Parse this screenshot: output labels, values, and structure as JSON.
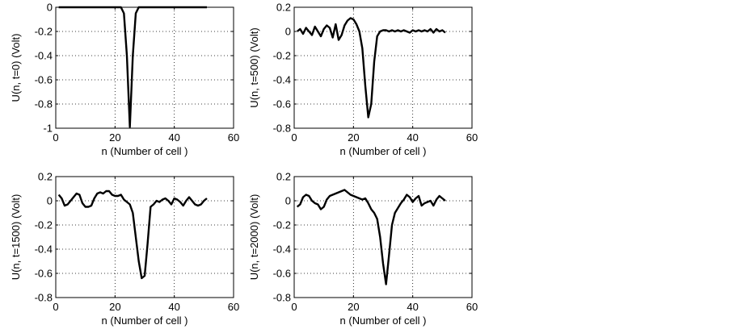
{
  "chart_data": [
    {
      "type": "line",
      "xlabel": "n (Number of cell )",
      "ylabel": "U(n, t=0) (Volt)",
      "xlim": [
        0,
        60
      ],
      "ylim": [
        -1,
        0
      ],
      "xticks": [
        0,
        20,
        40,
        60
      ],
      "yticks": [
        -1,
        -0.8,
        -0.6,
        -0.4,
        -0.2,
        0
      ],
      "ytick_labels": [
        "-1",
        "-0.8",
        "-0.6",
        "-0.4",
        "-0.2",
        "0"
      ],
      "grid": true,
      "series": [
        {
          "x": [
            1,
            2,
            3,
            4,
            5,
            6,
            7,
            8,
            9,
            10,
            11,
            12,
            13,
            14,
            15,
            16,
            17,
            18,
            19,
            20,
            21,
            22,
            23,
            24,
            25,
            26,
            27,
            28,
            29,
            30,
            31,
            32,
            33,
            34,
            35,
            36,
            37,
            38,
            39,
            40,
            41,
            42,
            43,
            44,
            45,
            46,
            47,
            48,
            49,
            50,
            51
          ],
          "y": [
            0,
            0,
            0,
            0,
            0,
            0,
            0,
            0,
            0,
            0,
            0,
            0,
            0,
            0,
            0,
            0,
            0,
            0,
            0,
            0,
            0,
            0,
            -0.05,
            -0.4,
            -0.99,
            -0.4,
            -0.05,
            0,
            0,
            0,
            0,
            0,
            0,
            0,
            0,
            0,
            0,
            0,
            0,
            0,
            0,
            0,
            0,
            0,
            0,
            0,
            0,
            0,
            0,
            0,
            0
          ]
        }
      ]
    },
    {
      "type": "line",
      "xlabel": "n (Number of cell )",
      "ylabel": "U(n, t=500) (Volt)",
      "xlim": [
        0,
        60
      ],
      "ylim": [
        -0.8,
        0.2
      ],
      "xticks": [
        0,
        20,
        40,
        60
      ],
      "yticks": [
        -0.8,
        -0.6,
        -0.4,
        -0.2,
        0,
        0.2
      ],
      "ytick_labels": [
        "-0.8",
        "-0.6",
        "-0.4",
        "-0.2",
        "0",
        "0.2"
      ],
      "grid": true,
      "series": [
        {
          "x": [
            1,
            2,
            3,
            4,
            5,
            6,
            7,
            8,
            9,
            10,
            11,
            12,
            13,
            14,
            15,
            16,
            17,
            18,
            19,
            20,
            21,
            22,
            23,
            24,
            25,
            26,
            27,
            28,
            29,
            30,
            31,
            32,
            33,
            34,
            35,
            36,
            37,
            38,
            39,
            40,
            41,
            42,
            43,
            44,
            45,
            46,
            47,
            48,
            49,
            50,
            51
          ],
          "y": [
            0,
            0.02,
            -0.02,
            0.03,
            0,
            -0.03,
            0.04,
            0,
            -0.04,
            0.02,
            0.05,
            0.03,
            -0.05,
            0.06,
            -0.07,
            -0.03,
            0.05,
            0.09,
            0.11,
            0.1,
            0.06,
            0,
            -0.14,
            -0.45,
            -0.71,
            -0.6,
            -0.25,
            -0.04,
            0,
            0.01,
            0.01,
            0,
            0.01,
            0,
            0.01,
            0,
            0.01,
            0,
            -0.01,
            0.01,
            0,
            0.01,
            0,
            0.01,
            0,
            0.02,
            -0.01,
            0.02,
            0,
            0.01,
            -0.01
          ]
        }
      ]
    },
    {
      "type": "line",
      "xlabel": "n (Number of cell )",
      "ylabel": "U(n, t=1500) (Volt)",
      "xlim": [
        0,
        60
      ],
      "ylim": [
        -0.8,
        0.2
      ],
      "xticks": [
        0,
        20,
        40,
        60
      ],
      "yticks": [
        -0.8,
        -0.6,
        -0.4,
        -0.2,
        0,
        0.2
      ],
      "ytick_labels": [
        "-0.8",
        "-0.6",
        "-0.4",
        "-0.2",
        "0",
        "0.2"
      ],
      "grid": true,
      "series": [
        {
          "x": [
            1,
            2,
            3,
            4,
            5,
            6,
            7,
            8,
            9,
            10,
            11,
            12,
            13,
            14,
            15,
            16,
            17,
            18,
            19,
            20,
            21,
            22,
            23,
            24,
            25,
            26,
            27,
            28,
            29,
            30,
            31,
            32,
            33,
            34,
            35,
            36,
            37,
            38,
            39,
            40,
            41,
            42,
            43,
            44,
            45,
            46,
            47,
            48,
            49,
            50,
            51
          ],
          "y": [
            0.05,
            0.02,
            -0.04,
            -0.03,
            0,
            0.03,
            0.06,
            0.05,
            -0.02,
            -0.05,
            -0.05,
            -0.04,
            0.02,
            0.06,
            0.07,
            0.06,
            0.08,
            0.08,
            0.05,
            0.04,
            0.04,
            0.05,
            0.01,
            -0.01,
            -0.03,
            -0.1,
            -0.3,
            -0.5,
            -0.64,
            -0.62,
            -0.35,
            -0.05,
            -0.03,
            0,
            -0.01,
            0.01,
            0.02,
            0,
            -0.03,
            0.02,
            0.01,
            -0.01,
            -0.04,
            0,
            0.03,
            0,
            -0.03,
            -0.04,
            -0.03,
            0,
            0.02
          ]
        }
      ]
    },
    {
      "type": "line",
      "xlabel": "n (Number of cell )",
      "ylabel": "U(n, t=2000) (Volt)",
      "xlim": [
        0,
        60
      ],
      "ylim": [
        -0.8,
        0.2
      ],
      "xticks": [
        0,
        20,
        40,
        60
      ],
      "yticks": [
        -0.8,
        -0.6,
        -0.4,
        -0.2,
        0,
        0.2
      ],
      "ytick_labels": [
        "-0.8",
        "-0.6",
        "-0.4",
        "-0.2",
        "0",
        "0.2"
      ],
      "grid": true,
      "series": [
        {
          "x": [
            1,
            2,
            3,
            4,
            5,
            6,
            7,
            8,
            9,
            10,
            11,
            12,
            13,
            14,
            15,
            16,
            17,
            18,
            19,
            20,
            21,
            22,
            23,
            24,
            25,
            26,
            27,
            28,
            29,
            30,
            31,
            32,
            33,
            34,
            35,
            36,
            37,
            38,
            39,
            40,
            41,
            42,
            43,
            44,
            45,
            46,
            47,
            48,
            49,
            50,
            51
          ],
          "y": [
            -0.05,
            -0.03,
            0.03,
            0.05,
            0.04,
            0,
            -0.02,
            -0.03,
            -0.07,
            -0.05,
            0.01,
            0.04,
            0.05,
            0.06,
            0.07,
            0.08,
            0.09,
            0.07,
            0.05,
            0.04,
            0.03,
            0.02,
            0.01,
            0.02,
            -0.02,
            -0.07,
            -0.1,
            -0.15,
            -0.3,
            -0.52,
            -0.69,
            -0.45,
            -0.2,
            -0.1,
            -0.06,
            -0.02,
            0.01,
            0.05,
            0.03,
            -0.01,
            0.02,
            0.04,
            -0.04,
            -0.02,
            -0.01,
            0,
            -0.04,
            0.01,
            0.04,
            0.02,
            0
          ]
        }
      ]
    }
  ]
}
